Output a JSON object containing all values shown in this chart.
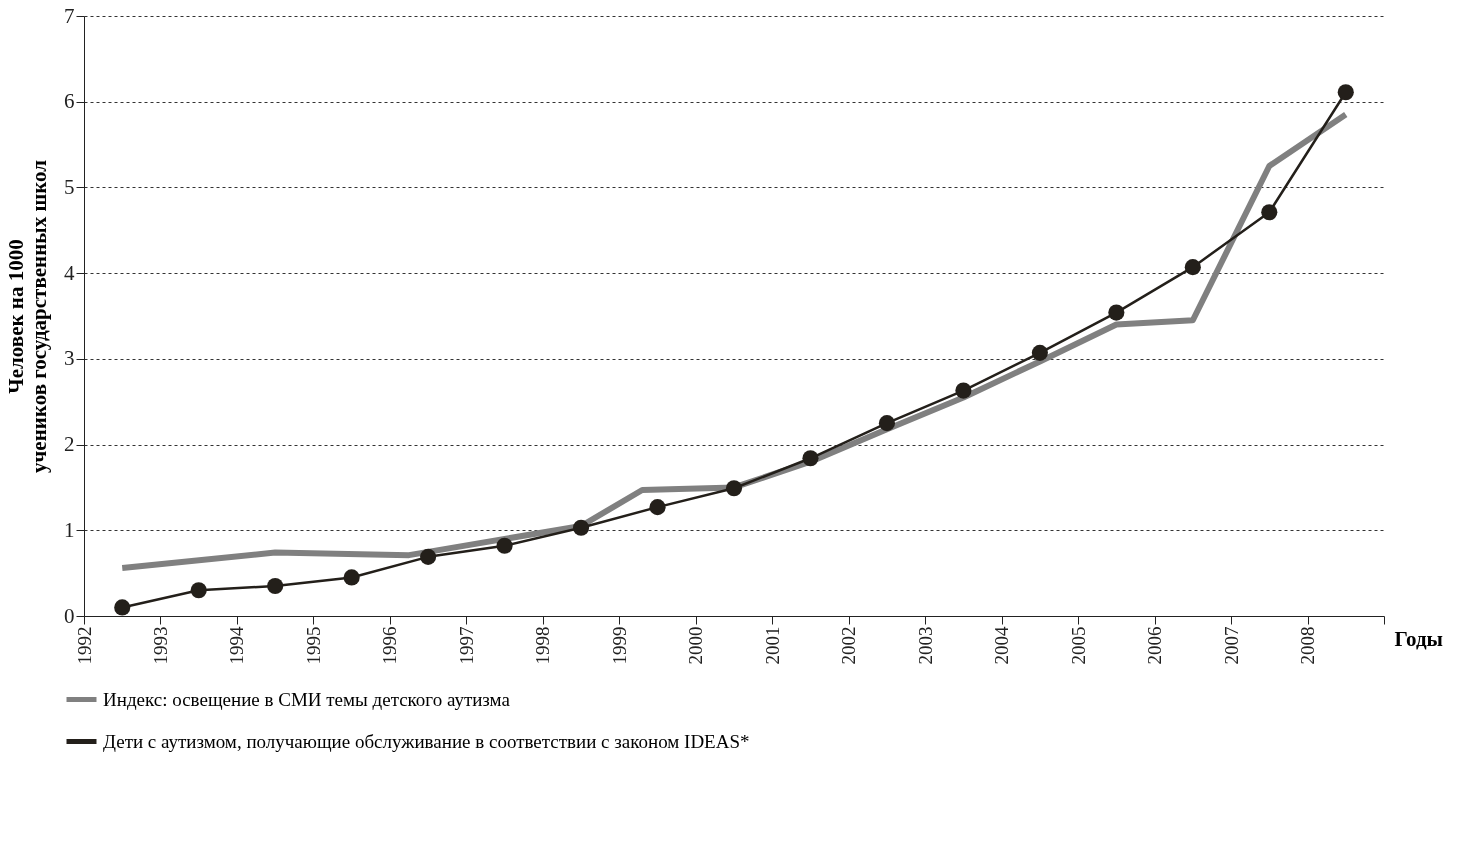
{
  "chart_data": {
    "type": "line",
    "xlabel": "Годы",
    "ylabel": "Человек на 1000 учеников государственных школ",
    "xlim": [
      1992,
      2009
    ],
    "xticks": [
      1992,
      1993,
      1994,
      1995,
      1996,
      1997,
      1998,
      1999,
      2000,
      2001,
      2002,
      2003,
      2004,
      2005,
      2006,
      2007,
      2008,
      {
        "value": 2009,
        "label": null
      }
    ],
    "ylim": [
      0,
      7
    ],
    "yticks": [
      0,
      1,
      2,
      3,
      4,
      5,
      6,
      7
    ],
    "grid": "y",
    "legend": "bottom",
    "series": [
      {
        "name": "Индекс: освещение в СМИ темы детского аутизма",
        "color": "#808080",
        "marker": "none",
        "x": [
          1992.5,
          1994.5,
          1996.25,
          1998.5,
          1999.3,
          2000.5,
          2001.5,
          2002.5,
          2003.5,
          2004.5,
          2005.5,
          2006.5,
          2007.5,
          2008.5
        ],
        "values": [
          0.56,
          0.74,
          0.71,
          1.05,
          1.47,
          1.5,
          1.8,
          2.18,
          2.55,
          2.97,
          3.4,
          3.45,
          5.25,
          5.85
        ]
      },
      {
        "name": "Дети с аутизмом, получающие обслуживание в соответствии с законом IDEAS*",
        "color": "#231f1a",
        "marker": "circle",
        "x": [
          1992.5,
          1993.5,
          1994.5,
          1995.5,
          1996.5,
          1997.5,
          1998.5,
          1999.5,
          2000.5,
          2001.5,
          2002.5,
          2003.5,
          2004.5,
          2005.5,
          2006.5,
          2007.5,
          2008.5
        ],
        "values": [
          0.1,
          0.3,
          0.35,
          0.45,
          0.69,
          0.82,
          1.03,
          1.27,
          1.49,
          1.84,
          2.25,
          2.63,
          3.07,
          3.54,
          4.07,
          4.71,
          6.11
        ]
      }
    ]
  }
}
